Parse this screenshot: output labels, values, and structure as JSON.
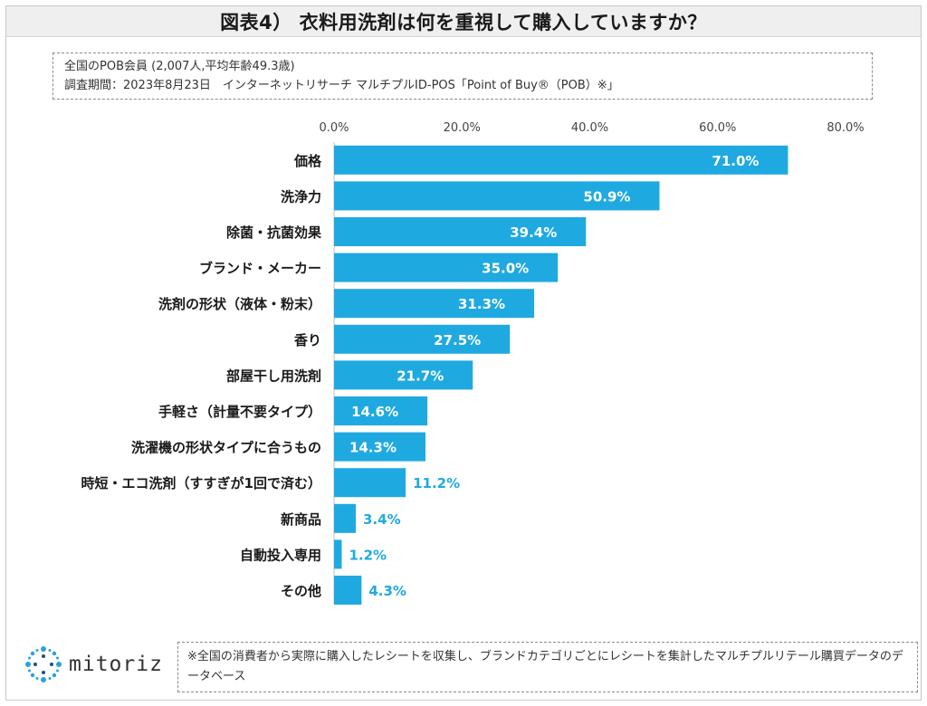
{
  "title": "図表4） 衣料用洗剤は何を重視して購入していますか？",
  "source": {
    "line1": "全国のPOB会員 (2,007人,平均年齢49.3歳)",
    "line2": "調査期間：2023年8月23日　インターネットリサーチ マルチプルID-POS「Point of Buy®（POB）※」"
  },
  "footer_note": "※全国の消費者から実際に購入したレシートを収集し、ブランドカテゴリごとにレシートを集計したマルチプルリテール購買データのデータベース",
  "logo": {
    "text": "mitoriz",
    "icon": "sparkle-ring-icon"
  },
  "colors": {
    "bar": "#1fa9e1",
    "label_inside": "#ffffff",
    "label_outside": "#1fa9e1",
    "gridline": "#d9d9d9"
  },
  "chart_data": {
    "type": "bar",
    "orientation": "horizontal",
    "title": "",
    "xlabel": "",
    "ylabel": "",
    "xlim": [
      0,
      80
    ],
    "xticks": [
      "0.0%",
      "20.0%",
      "40.0%",
      "60.0%",
      "80.0%"
    ],
    "tick_values": [
      0,
      20,
      40,
      60,
      80
    ],
    "unit": "%",
    "grid": true,
    "legend": "none",
    "categories": [
      "価格",
      "洗浄力",
      "除菌・抗菌効果",
      "ブランド・メーカー",
      "洗剤の形状（液体・粉末）",
      "香り",
      "部屋干し用洗剤",
      "手軽さ（計量不要タイプ）",
      "洗濯機の形状タイプに合うもの",
      "時短・エコ洗剤（すすぎが1回で済む）",
      "新商品",
      "自動投入専用",
      "その他"
    ],
    "values": [
      71.0,
      50.9,
      39.4,
      35.0,
      31.3,
      27.5,
      21.7,
      14.6,
      14.3,
      11.2,
      3.4,
      1.2,
      4.3
    ],
    "data_labels": [
      "71.0%",
      "50.9%",
      "39.4%",
      "35.0%",
      "31.3%",
      "27.5%",
      "21.7%",
      "14.6%",
      "14.3%",
      "11.2%",
      "3.4%",
      "1.2%",
      "4.3%"
    ],
    "label_inside": [
      true,
      true,
      true,
      true,
      true,
      true,
      true,
      true,
      true,
      false,
      false,
      false,
      false
    ]
  }
}
